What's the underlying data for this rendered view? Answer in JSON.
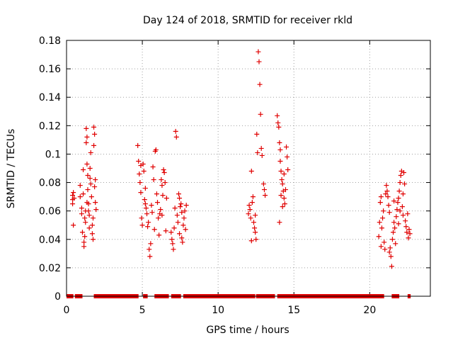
{
  "chart_data": {
    "type": "scatter",
    "title": "Day 124 of 2018, SRMTID for receiver rkld",
    "xlabel": "GPS time / hours",
    "ylabel": "SRMTID / TECUs",
    "xlim": [
      0,
      24
    ],
    "ylim": [
      0,
      0.18
    ],
    "xticks": [
      0,
      5,
      10,
      15,
      20
    ],
    "xtick_labels": [
      "0",
      "5",
      "10",
      "15",
      "20"
    ],
    "yticks": [
      0,
      0.02,
      0.04,
      0.06,
      0.08,
      0.1,
      0.12,
      0.14,
      0.16,
      0.18
    ],
    "ytick_labels": [
      "0",
      "0.02",
      "0.04",
      "0.06",
      "0.08",
      "0.1",
      "0.12",
      "0.14",
      "0.16",
      "0.18"
    ],
    "grid": true,
    "marker": "+",
    "marker_color": "#e00000",
    "series": [
      {
        "name": "SRMTID",
        "points": [
          [
            0.4,
            0.071
          ],
          [
            0.4,
            0.068
          ],
          [
            0.4,
            0.065
          ],
          [
            0.45,
            0.073
          ],
          [
            0.45,
            0.05
          ],
          [
            0.5,
            0.069
          ],
          [
            0.9,
            0.078
          ],
          [
            0.9,
            0.07
          ],
          [
            1.0,
            0.058
          ],
          [
            1.0,
            0.062
          ],
          [
            1.05,
            0.045
          ],
          [
            1.1,
            0.072
          ],
          [
            1.1,
            0.089
          ],
          [
            1.15,
            0.038
          ],
          [
            1.15,
            0.035
          ],
          [
            1.2,
            0.042
          ],
          [
            1.2,
            0.055
          ],
          [
            1.25,
            0.052
          ],
          [
            1.3,
            0.108
          ],
          [
            1.3,
            0.118
          ],
          [
            1.35,
            0.112
          ],
          [
            1.35,
            0.093
          ],
          [
            1.4,
            0.085
          ],
          [
            1.4,
            0.075
          ],
          [
            1.45,
            0.065
          ],
          [
            1.45,
            0.06
          ],
          [
            1.5,
            0.057
          ],
          [
            1.5,
            0.048
          ],
          [
            1.55,
            0.083
          ],
          [
            1.55,
            0.09
          ],
          [
            1.6,
            0.101
          ],
          [
            1.65,
            0.07
          ],
          [
            1.7,
            0.05
          ],
          [
            1.7,
            0.044
          ],
          [
            1.75,
            0.04
          ],
          [
            1.75,
            0.055
          ],
          [
            1.8,
            0.106
          ],
          [
            1.8,
            0.119
          ],
          [
            1.85,
            0.114
          ],
          [
            1.85,
            0.077
          ],
          [
            1.9,
            0.066
          ],
          [
            1.9,
            0.082
          ],
          [
            1.95,
            0.061
          ],
          [
            1.35,
            0.066
          ],
          [
            1.6,
            0.079
          ],
          [
            1.25,
            0.06
          ],
          [
            4.7,
            0.106
          ],
          [
            4.75,
            0.095
          ],
          [
            4.8,
            0.086
          ],
          [
            4.85,
            0.08
          ],
          [
            4.9,
            0.073
          ],
          [
            4.95,
            0.055
          ],
          [
            5.0,
            0.05
          ],
          [
            5.05,
            0.093
          ],
          [
            5.1,
            0.088
          ],
          [
            5.15,
            0.068
          ],
          [
            5.2,
            0.076
          ],
          [
            5.25,
            0.062
          ],
          [
            5.3,
            0.058
          ],
          [
            5.35,
            0.049
          ],
          [
            5.4,
            0.052
          ],
          [
            5.45,
            0.033
          ],
          [
            5.5,
            0.028
          ],
          [
            5.55,
            0.037
          ],
          [
            5.6,
            0.064
          ],
          [
            5.65,
            0.059
          ],
          [
            5.7,
            0.091
          ],
          [
            5.75,
            0.082
          ],
          [
            5.8,
            0.047
          ],
          [
            5.85,
            0.102
          ],
          [
            5.9,
            0.103
          ],
          [
            5.95,
            0.072
          ],
          [
            6.0,
            0.066
          ],
          [
            6.05,
            0.055
          ],
          [
            6.1,
            0.043
          ],
          [
            6.15,
            0.058
          ],
          [
            6.2,
            0.061
          ],
          [
            6.25,
            0.082
          ],
          [
            6.3,
            0.078
          ],
          [
            6.35,
            0.071
          ],
          [
            6.4,
            0.089
          ],
          [
            6.45,
            0.087
          ],
          [
            6.5,
            0.08
          ],
          [
            6.55,
            0.046
          ],
          [
            6.6,
            0.069
          ],
          [
            5.2,
            0.065
          ],
          [
            4.9,
            0.092
          ],
          [
            6.3,
            0.057
          ],
          [
            6.9,
            0.045
          ],
          [
            6.95,
            0.04
          ],
          [
            7.0,
            0.037
          ],
          [
            7.05,
            0.033
          ],
          [
            7.1,
            0.048
          ],
          [
            7.15,
            0.062
          ],
          [
            7.2,
            0.116
          ],
          [
            7.25,
            0.112
          ],
          [
            7.3,
            0.057
          ],
          [
            7.35,
            0.052
          ],
          [
            7.4,
            0.072
          ],
          [
            7.45,
            0.069
          ],
          [
            7.5,
            0.063
          ],
          [
            7.55,
            0.065
          ],
          [
            7.6,
            0.041
          ],
          [
            7.65,
            0.038
          ],
          [
            7.7,
            0.05
          ],
          [
            7.75,
            0.055
          ],
          [
            7.8,
            0.06
          ],
          [
            7.85,
            0.047
          ],
          [
            7.9,
            0.064
          ],
          [
            7.45,
            0.044
          ],
          [
            7.6,
            0.059
          ],
          [
            12.0,
            0.058
          ],
          [
            12.05,
            0.064
          ],
          [
            12.1,
            0.061
          ],
          [
            12.15,
            0.055
          ],
          [
            12.2,
            0.088
          ],
          [
            12.25,
            0.066
          ],
          [
            12.3,
            0.07
          ],
          [
            12.35,
            0.052
          ],
          [
            12.4,
            0.048
          ],
          [
            12.45,
            0.045
          ],
          [
            12.5,
            0.04
          ],
          [
            12.55,
            0.114
          ],
          [
            12.6,
            0.101
          ],
          [
            12.65,
            0.172
          ],
          [
            12.7,
            0.165
          ],
          [
            12.75,
            0.149
          ],
          [
            12.8,
            0.128
          ],
          [
            12.85,
            0.104
          ],
          [
            12.9,
            0.099
          ],
          [
            13.0,
            0.079
          ],
          [
            13.05,
            0.075
          ],
          [
            13.1,
            0.071
          ],
          [
            12.2,
            0.039
          ],
          [
            12.45,
            0.057
          ],
          [
            13.9,
            0.127
          ],
          [
            13.95,
            0.122
          ],
          [
            14.0,
            0.119
          ],
          [
            14.05,
            0.108
          ],
          [
            14.1,
            0.103
          ],
          [
            14.1,
            0.095
          ],
          [
            14.15,
            0.088
          ],
          [
            14.2,
            0.082
          ],
          [
            14.25,
            0.079
          ],
          [
            14.3,
            0.074
          ],
          [
            14.35,
            0.069
          ],
          [
            14.4,
            0.065
          ],
          [
            14.45,
            0.075
          ],
          [
            14.5,
            0.105
          ],
          [
            14.55,
            0.098
          ],
          [
            14.6,
            0.089
          ],
          [
            14.05,
            0.052
          ],
          [
            14.25,
            0.063
          ],
          [
            14.15,
            0.071
          ],
          [
            14.35,
            0.086
          ],
          [
            20.6,
            0.042
          ],
          [
            20.65,
            0.052
          ],
          [
            20.7,
            0.066
          ],
          [
            20.75,
            0.07
          ],
          [
            20.8,
            0.048
          ],
          [
            20.85,
            0.055
          ],
          [
            20.9,
            0.06
          ],
          [
            20.95,
            0.038
          ],
          [
            21.0,
            0.033
          ],
          [
            21.05,
            0.072
          ],
          [
            21.1,
            0.078
          ],
          [
            21.15,
            0.074
          ],
          [
            21.2,
            0.07
          ],
          [
            21.25,
            0.064
          ],
          [
            21.3,
            0.059
          ],
          [
            21.35,
            0.034
          ],
          [
            21.4,
            0.028
          ],
          [
            21.45,
            0.021
          ],
          [
            21.5,
            0.04
          ],
          [
            21.55,
            0.045
          ],
          [
            21.6,
            0.052
          ],
          [
            21.65,
            0.048
          ],
          [
            21.7,
            0.037
          ],
          [
            21.75,
            0.056
          ],
          [
            21.8,
            0.061
          ],
          [
            21.85,
            0.066
          ],
          [
            21.9,
            0.069
          ],
          [
            21.95,
            0.074
          ],
          [
            22.0,
            0.08
          ],
          [
            22.05,
            0.085
          ],
          [
            22.1,
            0.088
          ],
          [
            22.15,
            0.063
          ],
          [
            22.2,
            0.057
          ],
          [
            22.25,
            0.087
          ],
          [
            22.3,
            0.079
          ],
          [
            22.35,
            0.053
          ],
          [
            22.4,
            0.049
          ],
          [
            22.45,
            0.045
          ],
          [
            22.5,
            0.058
          ],
          [
            22.55,
            0.041
          ],
          [
            22.6,
            0.047
          ],
          [
            22.65,
            0.044
          ],
          [
            21.3,
            0.031
          ],
          [
            21.9,
            0.051
          ],
          [
            22.0,
            0.06
          ],
          [
            20.75,
            0.035
          ],
          [
            21.6,
            0.067
          ],
          [
            22.2,
            0.072
          ]
        ]
      }
    ],
    "zero_band_intervals": [
      [
        0.0,
        0.45
      ],
      [
        0.55,
        1.05
      ],
      [
        1.8,
        4.75
      ],
      [
        5.05,
        5.35
      ],
      [
        5.8,
        6.75
      ],
      [
        6.9,
        7.55
      ],
      [
        7.7,
        12.45
      ],
      [
        12.5,
        13.75
      ],
      [
        13.9,
        20.95
      ],
      [
        21.45,
        21.95
      ],
      [
        22.5,
        22.7
      ]
    ]
  }
}
